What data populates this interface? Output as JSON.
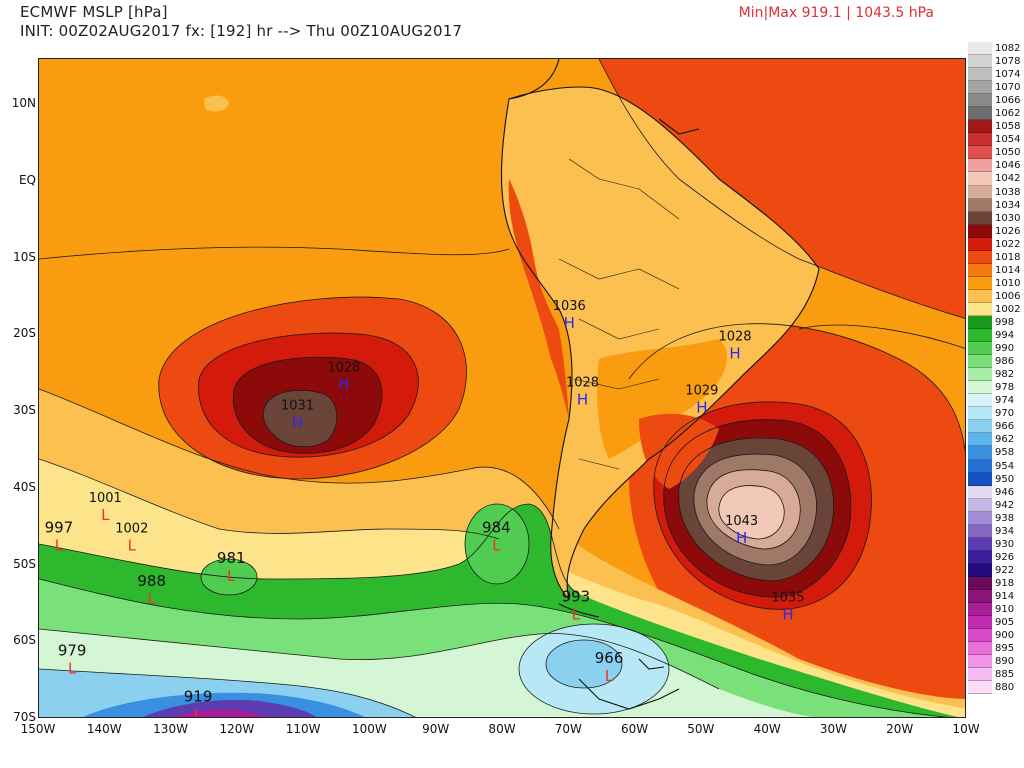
{
  "header": {
    "title": "ECMWF MSLP [hPa]",
    "init": "INIT: 00Z02AUG2017 fx: [192] hr --> Thu 00Z10AUG2017",
    "minmax": "Min|Max 919.1 | 1043.5 hPa"
  },
  "axes": {
    "lat_labels": [
      "10N",
      "EQ",
      "10S",
      "20S",
      "30S",
      "40S",
      "50S",
      "60S",
      "70S"
    ],
    "lon_labels": [
      "150W",
      "140W",
      "130W",
      "120W",
      "110W",
      "100W",
      "90W",
      "80W",
      "70W",
      "60W",
      "50W",
      "40W",
      "30W",
      "20W",
      "10W"
    ]
  },
  "legend": [
    {
      "label": "1082",
      "color": "#e8e8e8"
    },
    {
      "label": "1078",
      "color": "#d2d2d2"
    },
    {
      "label": "1074",
      "color": "#bebebe"
    },
    {
      "label": "1070",
      "color": "#a4a4a4"
    },
    {
      "label": "1066",
      "color": "#8a8a8a"
    },
    {
      "label": "1062",
      "color": "#6e6e6e"
    },
    {
      "label": "1058",
      "color": "#a01818"
    },
    {
      "label": "1054",
      "color": "#c83030"
    },
    {
      "label": "1050",
      "color": "#e05050"
    },
    {
      "label": "1046",
      "color": "#f0a0a0"
    },
    {
      "label": "1042",
      "color": "#f2c8b8"
    },
    {
      "label": "1038",
      "color": "#d8aa98"
    },
    {
      "label": "1034",
      "color": "#a07868"
    },
    {
      "label": "1030",
      "color": "#6a4438"
    },
    {
      "label": "1026",
      "color": "#8c0a0a"
    },
    {
      "label": "1022",
      "color": "#d41a0a"
    },
    {
      "label": "1018",
      "color": "#ec4a10"
    },
    {
      "label": "1014",
      "color": "#f47a10"
    },
    {
      "label": "1010",
      "color": "#fa9c10"
    },
    {
      "label": "1006",
      "color": "#fbc050"
    },
    {
      "label": "1002",
      "color": "#fde48a"
    },
    {
      "label": "998",
      "color": "#1a9a1a"
    },
    {
      "label": "994",
      "color": "#2eb82e"
    },
    {
      "label": "990",
      "color": "#50cc50"
    },
    {
      "label": "986",
      "color": "#7ae07a"
    },
    {
      "label": "982",
      "color": "#a8eca8"
    },
    {
      "label": "978",
      "color": "#d4f6d4"
    },
    {
      "label": "974",
      "color": "#d8f4fa"
    },
    {
      "label": "970",
      "color": "#b8e8f6"
    },
    {
      "label": "966",
      "color": "#8cd0f0"
    },
    {
      "label": "962",
      "color": "#5cb4ec"
    },
    {
      "label": "958",
      "color": "#3a90e0"
    },
    {
      "label": "954",
      "color": "#2270d4"
    },
    {
      "label": "950",
      "color": "#1250c4"
    },
    {
      "label": "946",
      "color": "#e2dcf2"
    },
    {
      "label": "942",
      "color": "#c4b6e6"
    },
    {
      "label": "938",
      "color": "#a28ed6"
    },
    {
      "label": "934",
      "color": "#8466c4"
    },
    {
      "label": "930",
      "color": "#5c3cb0"
    },
    {
      "label": "926",
      "color": "#3c1c98"
    },
    {
      "label": "922",
      "color": "#220a7c"
    },
    {
      "label": "918",
      "color": "#6a0a5a"
    },
    {
      "label": "914",
      "color": "#8a1478"
    },
    {
      "label": "910",
      "color": "#a81e98"
    },
    {
      "label": "905",
      "color": "#c22ab4"
    },
    {
      "label": "900",
      "color": "#d64ac8"
    },
    {
      "label": "895",
      "color": "#e470d8"
    },
    {
      "label": "890",
      "color": "#ee96e6"
    },
    {
      "label": "885",
      "color": "#f4bcf0"
    },
    {
      "label": "880",
      "color": "#f8dcf8"
    }
  ],
  "pressure_labels": [
    {
      "value": "1028",
      "system": "H",
      "lon": -104,
      "lat": -26
    },
    {
      "value": "1031",
      "system": "H",
      "lon": -111,
      "lat": -31
    },
    {
      "value": "1036",
      "system": "H",
      "lon": -70,
      "lat": -18
    },
    {
      "value": "1028",
      "system": "H",
      "lon": -68,
      "lat": -28
    },
    {
      "value": "1028",
      "system": "H",
      "lon": -45,
      "lat": -22
    },
    {
      "value": "1029",
      "system": "H",
      "lon": -50,
      "lat": -29
    },
    {
      "value": "1043",
      "system": "H",
      "lon": -44,
      "lat": -46
    },
    {
      "value": "1035",
      "system": "H",
      "lon": -37,
      "lat": -56
    },
    {
      "value": "1001",
      "system": "L",
      "lon": -140,
      "lat": -43
    },
    {
      "value": "1002",
      "system": "L",
      "lon": -136,
      "lat": -47
    },
    {
      "value": "997",
      "system": "L",
      "lon": -147,
      "lat": -47
    },
    {
      "value": "981",
      "system": "L",
      "lon": -121,
      "lat": -51
    },
    {
      "value": "988",
      "system": "L",
      "lon": -133,
      "lat": -54
    },
    {
      "value": "984",
      "system": "L",
      "lon": -81,
      "lat": -47
    },
    {
      "value": "993",
      "system": "L",
      "lon": -69,
      "lat": -56
    },
    {
      "value": "979",
      "system": "L",
      "lon": -145,
      "lat": -63
    },
    {
      "value": "966",
      "system": "L",
      "lon": -64,
      "lat": -64
    },
    {
      "value": "919",
      "system": "L",
      "lon": -126,
      "lat": -69
    }
  ],
  "colors": {
    "high_marker": "#2a2af0",
    "low_marker": "#f03030",
    "contour": "#1a1a1a",
    "coast": "#111111"
  }
}
